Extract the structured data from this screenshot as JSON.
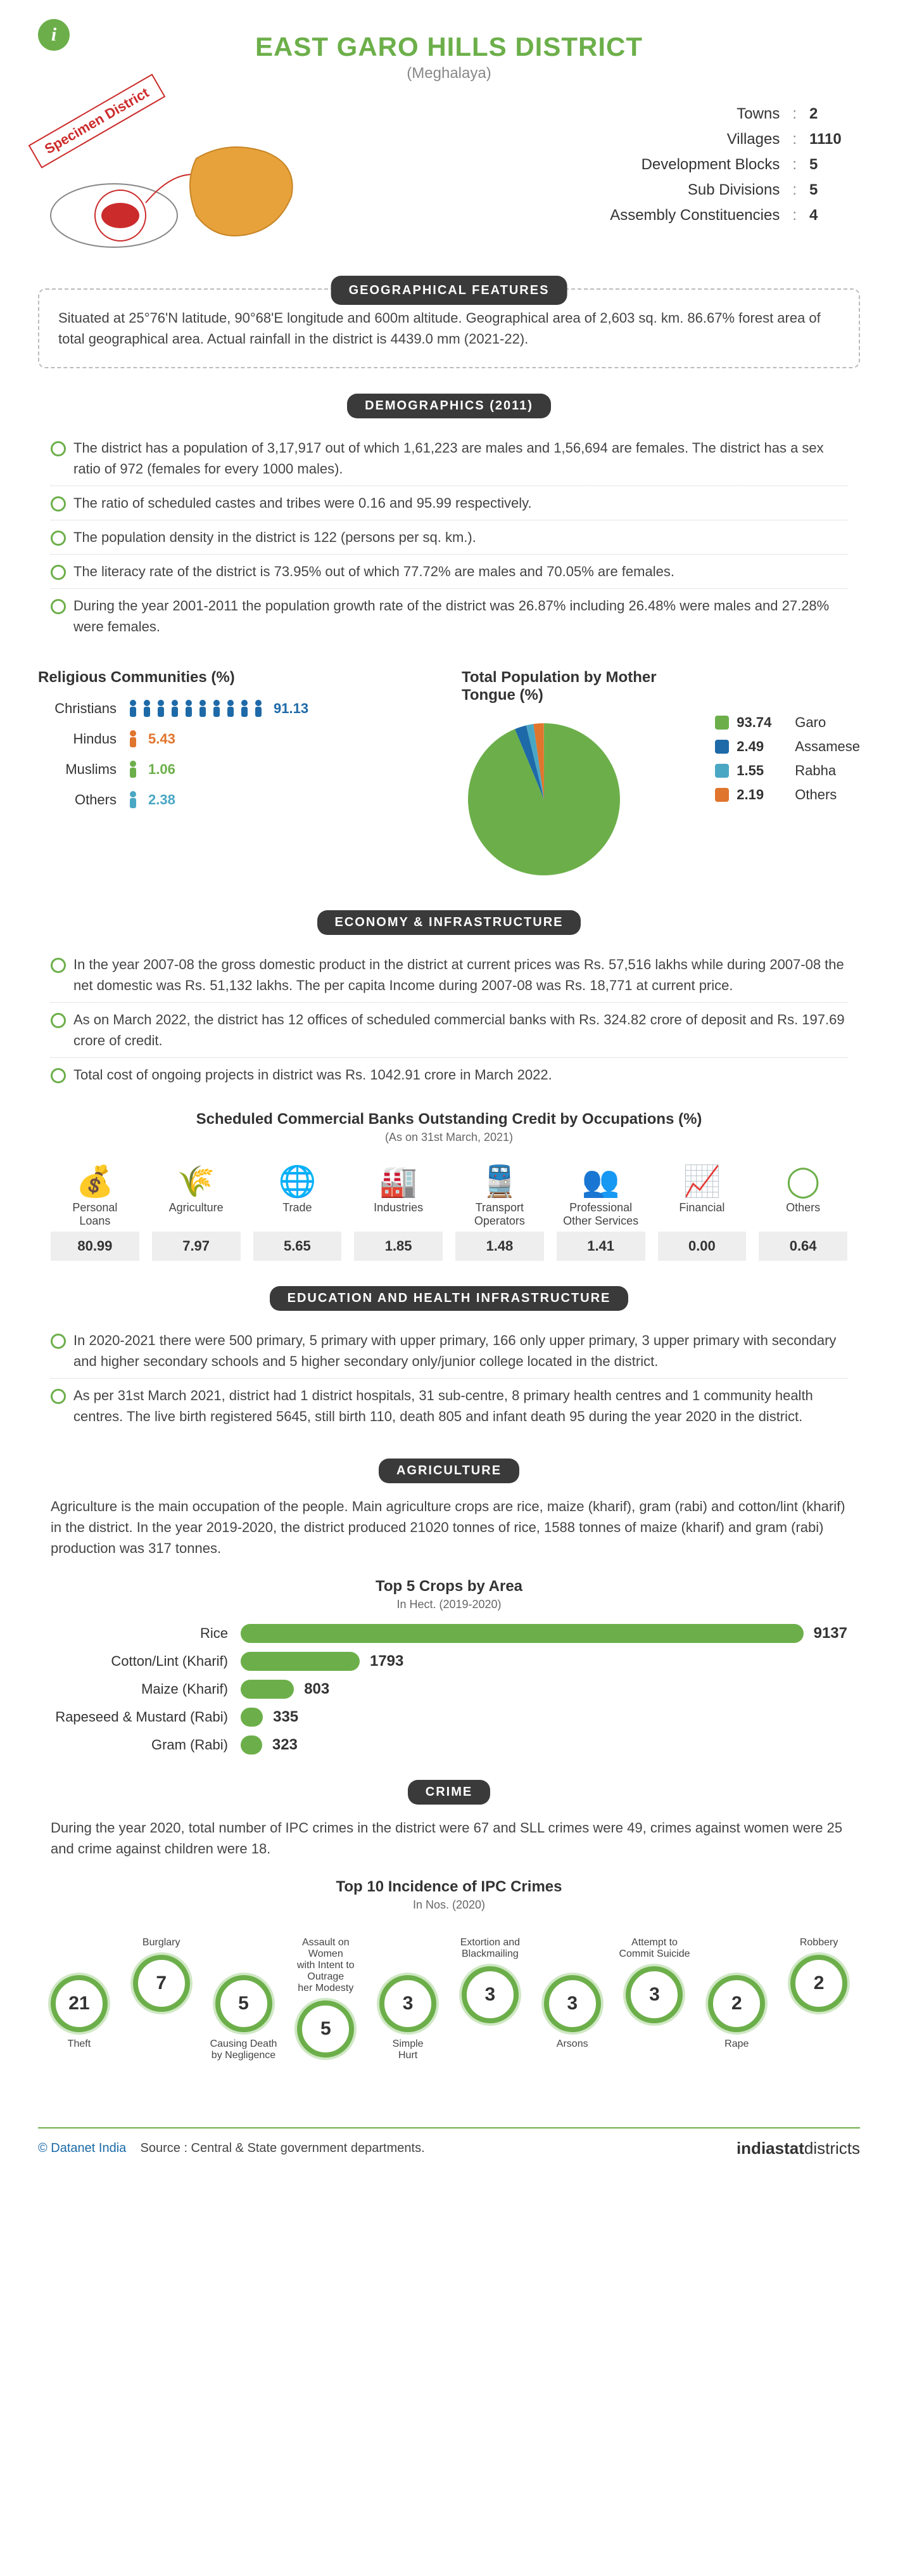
{
  "header": {
    "title": "EAST GARO HILLS DISTRICT",
    "subtitle": "(Meghalaya)",
    "info_glyph": "i",
    "specimen": "Specimen District",
    "stats": [
      {
        "label": "Towns",
        "value": "2"
      },
      {
        "label": "Villages",
        "value": "1110"
      },
      {
        "label": "Development Blocks",
        "value": "5"
      },
      {
        "label": "Sub Divisions",
        "value": "5"
      },
      {
        "label": "Assembly Constituencies",
        "value": "4"
      }
    ]
  },
  "geographical": {
    "pill": "GEOGRAPHICAL FEATURES",
    "text": "Situated at 25°76'N latitude, 90°68'E longitude and 600m altitude. Geographical area of 2,603 sq. km. 86.67% forest area of total geographical area. Actual rainfall in the district is 4439.0 mm (2021-22)."
  },
  "demographics": {
    "pill": "DEMOGRAPHICS (2011)",
    "bullets": [
      "The district has a population of 3,17,917 out of which 1,61,223 are males and 1,56,694 are females. The district has a sex ratio of 972 (females for every 1000 males).",
      "The ratio of scheduled castes and tribes were 0.16 and 95.99 respectively.",
      "The population density in the district is 122 (persons per sq. km.).",
      "The literacy rate of the district is 73.95% out of which 77.72% are males and 70.05% are females.",
      "During the year 2001-2011 the population growth rate of the district was 26.87% including 26.48% were males and 27.28% were females."
    ],
    "religious": {
      "title": "Religious Communities (%)",
      "rows": [
        {
          "label": "Christians",
          "value": "91.13",
          "icons": 10,
          "color": "#1e6aa8"
        },
        {
          "label": "Hindus",
          "value": "5.43",
          "icons": 1,
          "color": "#e0752d"
        },
        {
          "label": "Muslims",
          "value": "1.06",
          "icons": 1,
          "color": "#6caf4a"
        },
        {
          "label": "Others",
          "value": "2.38",
          "icons": 1,
          "color": "#4aa7c4"
        }
      ]
    },
    "mothertongue": {
      "title": "Total Population by Mother Tongue (%)",
      "legend": [
        {
          "value": "93.74",
          "label": "Garo",
          "color": "#6caf4a"
        },
        {
          "value": "2.49",
          "label": "Assamese",
          "color": "#1e6aa8"
        },
        {
          "value": "1.55",
          "label": "Rabha",
          "color": "#4aa7c4"
        },
        {
          "value": "2.19",
          "label": "Others",
          "color": "#e0752d"
        }
      ]
    }
  },
  "economy": {
    "pill": "ECONOMY & INFRASTRUCTURE",
    "bullets": [
      "In the year 2007-08 the gross domestic product in the district at current prices was Rs. 57,516 lakhs while during 2007-08 the net domestic was Rs. 51,132 lakhs. The per capita Income during 2007-08 was Rs. 18,771 at current price.",
      "As on March 2022, the district has 12 offices of scheduled commercial banks with Rs. 324.82 crore of deposit and Rs. 197.69 crore of credit.",
      "Total cost of ongoing projects in district was Rs. 1042.91 crore in March 2022."
    ],
    "credit": {
      "title": "Scheduled Commercial Banks Outstanding Credit by Occupations (%)",
      "note": "(As on 31st March, 2021)",
      "items": [
        {
          "icon": "loan",
          "label": "Personal\nLoans",
          "value": "80.99"
        },
        {
          "icon": "agri",
          "label": "Agriculture",
          "value": "7.97"
        },
        {
          "icon": "trade",
          "label": "Trade",
          "value": "5.65"
        },
        {
          "icon": "industry",
          "label": "Industries",
          "value": "1.85"
        },
        {
          "icon": "transport",
          "label": "Transport\nOperators",
          "value": "1.48"
        },
        {
          "icon": "prof",
          "label": "Professional\nOther Services",
          "value": "1.41"
        },
        {
          "icon": "finance",
          "label": "Financial",
          "value": "0.00"
        },
        {
          "icon": "others",
          "label": "Others",
          "value": "0.64"
        }
      ]
    }
  },
  "education": {
    "pill": "EDUCATION AND HEALTH INFRASTRUCTURE",
    "bullets": [
      "In 2020-2021 there were 500 primary, 5 primary with upper primary, 166 only upper primary, 3 upper primary with secondary and higher secondary schools and 5 higher secondary only/junior college located in the district.",
      "As per 31st March 2021, district had 1 district hospitals, 31 sub-centre, 8 primary health centres and 1 community health centres. The live birth registered 5645, still birth 110, death 805 and infant death 95 during the year 2020 in the district."
    ]
  },
  "agriculture": {
    "pill": "AGRICULTURE",
    "text": "Agriculture is the main occupation of the people. Main agriculture crops are rice, maize (kharif), gram (rabi) and cotton/lint (kharif) in the district. In the year 2019-2020, the district produced 21020 tonnes of rice, 1588 tonnes of maize (kharif) and gram (rabi) production was 317 tonnes.",
    "crops": {
      "title": "Top 5 Crops by Area",
      "note": "In Hect. (2019-2020)",
      "max": 9137,
      "rows": [
        {
          "label": "Rice",
          "value": 9137,
          "color": "#6caf4a"
        },
        {
          "label": "Cotton/Lint (Kharif)",
          "value": 1793,
          "color": "#6caf4a"
        },
        {
          "label": "Maize (Kharif)",
          "value": 803,
          "color": "#6caf4a"
        },
        {
          "label": "Rapeseed & Mustard (Rabi)",
          "value": 335,
          "color": "#6caf4a"
        },
        {
          "label": "Gram (Rabi)",
          "value": 323,
          "color": "#6caf4a"
        }
      ]
    }
  },
  "crime": {
    "pill": "CRIME",
    "text": "During the year 2020, total number of IPC crimes in the district were 67 and SLL crimes were 49, crimes against women were 25 and crime against children were 18.",
    "chain": {
      "title": "Top 10 Incidence of IPC Crimes",
      "note": "In Nos. (2020)",
      "items": [
        {
          "value": "21",
          "label": "Theft",
          "pos": "bottom"
        },
        {
          "value": "7",
          "label": "Burglary",
          "pos": "top"
        },
        {
          "value": "5",
          "label": "Causing Death\nby Negligence",
          "pos": "bottom"
        },
        {
          "value": "5",
          "label": "Assault on Women\nwith Intent to Outrage\nher Modesty",
          "pos": "top"
        },
        {
          "value": "3",
          "label": "Simple\nHurt",
          "pos": "bottom"
        },
        {
          "value": "3",
          "label": "Extortion and\nBlackmailing",
          "pos": "top"
        },
        {
          "value": "3",
          "label": "Arsons",
          "pos": "bottom"
        },
        {
          "value": "3",
          "label": "Attempt to\nCommit Suicide",
          "pos": "top"
        },
        {
          "value": "2",
          "label": "Rape",
          "pos": "bottom"
        },
        {
          "value": "2",
          "label": "Robbery",
          "pos": "top"
        }
      ]
    }
  },
  "footer": {
    "brand": "© Datanet India",
    "source": "Source : Central & State government departments.",
    "logo_bold": "indiastat",
    "logo_light": "districts"
  }
}
